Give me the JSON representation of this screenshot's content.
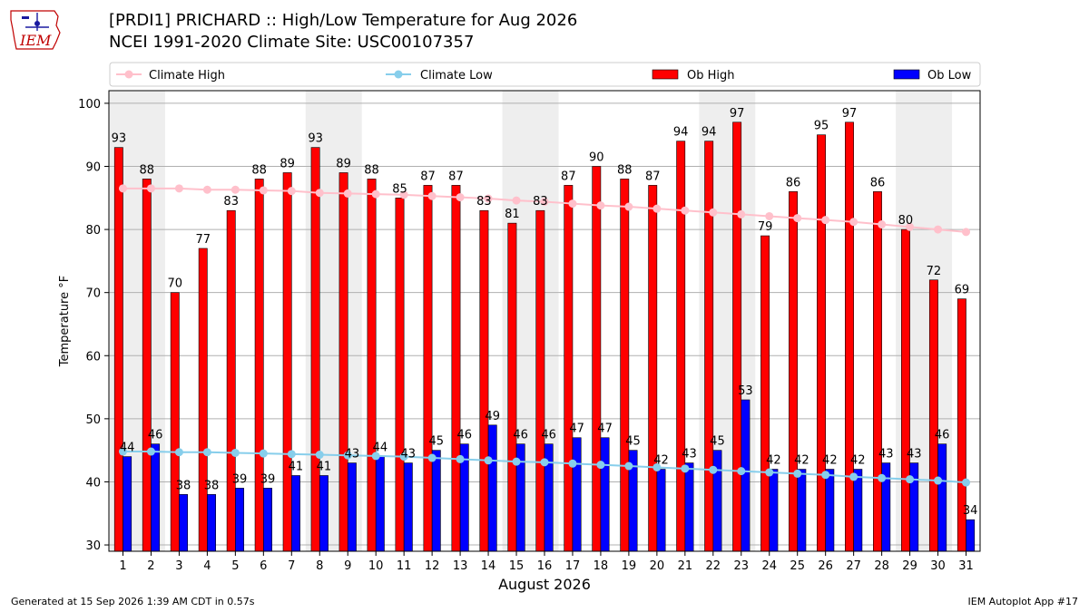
{
  "header": {
    "title_line1": "[PRDI1] PRICHARD :: High/Low Temperature for Aug 2026",
    "title_line2": "NCEI 1991-2020 Climate Site: USC00107357",
    "logo_text": "IEM"
  },
  "footer": {
    "generated": "Generated at 15 Sep 2026 1:39 AM CDT in 0.57s",
    "app": "IEM Autoplot App #17"
  },
  "colors": {
    "ob_high": "#ff0000",
    "ob_low": "#0000ff",
    "climate_high": "#ffc0cb",
    "climate_low": "#87ceeb",
    "weekend_shade": "#eeeeee",
    "grid": "#b0b0b0"
  },
  "chart_data": {
    "type": "bar",
    "xlabel": "August 2026",
    "ylabel": "Temperature °F",
    "ylim": [
      29,
      102
    ],
    "yticks": [
      30,
      40,
      50,
      60,
      70,
      80,
      90,
      100
    ],
    "grid": true,
    "legend_position": "top",
    "categories": [
      1,
      2,
      3,
      4,
      5,
      6,
      7,
      8,
      9,
      10,
      11,
      12,
      13,
      14,
      15,
      16,
      17,
      18,
      19,
      20,
      21,
      22,
      23,
      24,
      25,
      26,
      27,
      28,
      29,
      30,
      31
    ],
    "shaded_days": [
      [
        1,
        2
      ],
      [
        8,
        9
      ],
      [
        15,
        16
      ],
      [
        22,
        23
      ],
      [
        29,
        30
      ]
    ],
    "series": [
      {
        "name": "Ob High",
        "kind": "bar",
        "values": [
          93,
          88,
          70,
          77,
          83,
          88,
          89,
          93,
          89,
          88,
          85,
          87,
          87,
          83,
          81,
          83,
          87,
          90,
          88,
          87,
          94,
          94,
          97,
          79,
          86,
          95,
          97,
          86,
          80,
          72,
          69
        ]
      },
      {
        "name": "Ob Low",
        "kind": "bar",
        "values": [
          44,
          46,
          38,
          38,
          39,
          39,
          41,
          41,
          43,
          44,
          43,
          45,
          46,
          49,
          46,
          46,
          47,
          47,
          45,
          42,
          43,
          45,
          53,
          42,
          42,
          42,
          42,
          43,
          43,
          46,
          34
        ]
      },
      {
        "name": "Climate High",
        "kind": "line",
        "values": [
          86.5,
          86.5,
          86.5,
          86.3,
          86.3,
          86.2,
          86.1,
          85.8,
          85.7,
          85.6,
          85.5,
          85.3,
          85.1,
          84.9,
          84.6,
          84.4,
          84.1,
          83.8,
          83.6,
          83.3,
          83.0,
          82.7,
          82.4,
          82.1,
          81.8,
          81.5,
          81.2,
          80.8,
          80.4,
          80.0,
          79.6
        ]
      },
      {
        "name": "Climate Low",
        "kind": "line",
        "values": [
          44.8,
          44.8,
          44.7,
          44.7,
          44.6,
          44.5,
          44.4,
          44.3,
          44.2,
          44.1,
          44.0,
          43.8,
          43.6,
          43.4,
          43.2,
          43.1,
          42.9,
          42.7,
          42.5,
          42.3,
          42.1,
          41.9,
          41.7,
          41.5,
          41.3,
          41.1,
          40.8,
          40.6,
          40.4,
          40.2,
          39.9
        ]
      }
    ]
  }
}
